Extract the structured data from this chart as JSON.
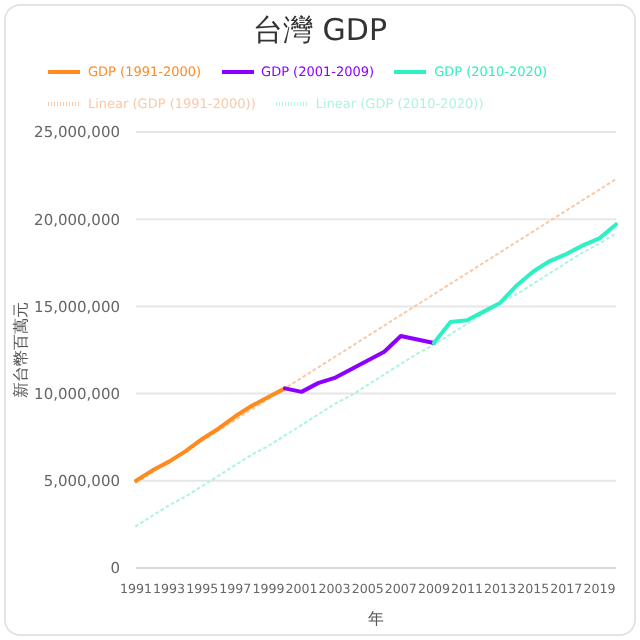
{
  "chart_data": {
    "type": "line",
    "title": "台灣 GDP",
    "xlabel": "年",
    "ylabel": "新台幣百萬元",
    "categories": [
      "1991",
      null,
      "1993",
      null,
      "1995",
      null,
      "1997",
      null,
      "1999",
      null,
      "2001",
      null,
      "2003",
      null,
      "2005",
      null,
      "2007",
      null,
      "2009",
      null,
      "2011",
      null,
      "2013",
      null,
      "2015",
      null,
      "2017",
      null,
      "2019",
      null
    ],
    "series": [
      {
        "name": "Linear (GDP (1991-2000))",
        "type": "line",
        "line_style": "dotted",
        "color": "#f9c9a6",
        "values": [
          4900000,
          5500000,
          6100000,
          6700000,
          7300000,
          7900000,
          8500000,
          9100000,
          9700000,
          10300000,
          10900000,
          11500000,
          12100000,
          12700000,
          13300000,
          13900000,
          14500000,
          15100000,
          15700000,
          16300000,
          16900000,
          17500000,
          18100000,
          18700000,
          19300000,
          19900000,
          20500000,
          21100000,
          21700000,
          22300000
        ]
      },
      {
        "name": "Linear (GDP (2010-2020))",
        "type": "line",
        "line_style": "dotted",
        "color": "#aef3df",
        "values": [
          2400000,
          3000000,
          3600000,
          4100000,
          4700000,
          5300000,
          5900000,
          6500000,
          7000000,
          7600000,
          8200000,
          8800000,
          9400000,
          9900000,
          10500000,
          11100000,
          11700000,
          12300000,
          12800000,
          13400000,
          14000000,
          14600000,
          15200000,
          15700000,
          16300000,
          16900000,
          17500000,
          18100000,
          18600000,
          19200000
        ]
      },
      {
        "name": "GDP (1991-2000)",
        "type": "line",
        "line_style": "solid",
        "color": "#ff8a1e",
        "values": [
          5000000,
          5600000,
          6100000,
          6700000,
          7400000,
          8000000,
          8700000,
          9300000,
          9800000,
          10300000,
          null,
          null,
          null,
          null,
          null,
          null,
          null,
          null,
          null,
          null,
          null,
          null,
          null,
          null,
          null,
          null,
          null,
          null,
          null,
          null
        ]
      },
      {
        "name": "GDP (2001-2009)",
        "type": "line",
        "line_style": "solid",
        "color": "#8c00ff",
        "values": [
          null,
          null,
          null,
          null,
          null,
          null,
          null,
          null,
          null,
          10300000,
          10100000,
          10600000,
          10900000,
          11400000,
          11900000,
          12400000,
          13300000,
          13100000,
          12900000,
          null,
          null,
          null,
          null,
          null,
          null,
          null,
          null,
          null,
          null,
          null
        ]
      },
      {
        "name": "GDP (2010-2020)",
        "type": "line",
        "line_style": "solid",
        "color": "#2ef0c4",
        "values": [
          null,
          null,
          null,
          null,
          null,
          null,
          null,
          null,
          null,
          null,
          null,
          null,
          null,
          null,
          null,
          null,
          null,
          null,
          12900000,
          14100000,
          14200000,
          14700000,
          15200000,
          16200000,
          17000000,
          17600000,
          18000000,
          18500000,
          18900000,
          19700000
        ]
      }
    ],
    "ylim": [
      0,
      25000000
    ],
    "yticks": [
      0,
      {
        "value": 5000000,
        "label": "5,000,000"
      },
      {
        "value": 10000000,
        "label": "10,000,000"
      },
      {
        "value": 15000000,
        "label": "15,000,000"
      },
      {
        "value": 20000000,
        "label": "20,000,000"
      },
      {
        "value": 25000000,
        "label": "25,000,000"
      }
    ],
    "grid": "y",
    "legend": "top",
    "marker": "none"
  }
}
